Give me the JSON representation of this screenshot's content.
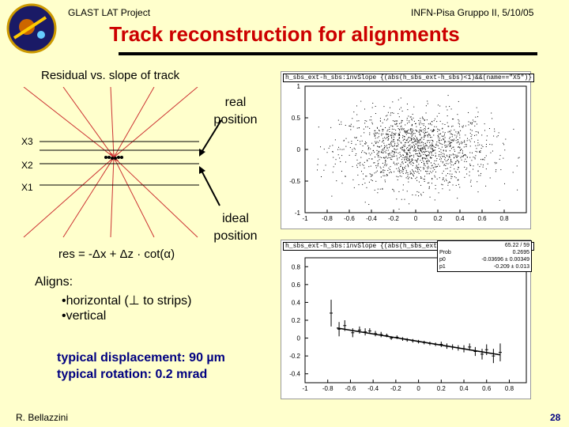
{
  "header": {
    "project": "GLAST LAT Project",
    "meeting": "INFN-Pisa Gruppo II, 5/10/05"
  },
  "title": "Track reconstruction for alignments",
  "diagram": {
    "caption": "Residual vs. slope of track",
    "real_label": "real\nposition",
    "ideal_label": "ideal\nposition",
    "layers": [
      "X3",
      "X2",
      "X1"
    ],
    "formula": "res = -Δx + Δz · cot(α)"
  },
  "aligns": {
    "heading": "Aligns:",
    "items": [
      "•horizontal (⊥ to strips)",
      "•vertical"
    ]
  },
  "results": {
    "displacement": "typical displacement: 90 µm",
    "rotation": "typical rotation: 0.2 mrad"
  },
  "footer": {
    "author": "R. Bellazzini",
    "page": "28"
  },
  "plots": {
    "top_title": "h_sbs_ext-h_sbs:invSlope {(abs(h_sbs_ext-h_sbs)<1)&&(name==\"X5\")}",
    "bottom_title": "h_sbs_ext-h_sbs:invSlope {(abs(h_sbs_ext-h_sbs)<1)&&(name==\"X5\")}",
    "fit_box": [
      {
        "k": "",
        "v": "65.22 / 59"
      },
      {
        "k": "Prob",
        "v": "0.2695"
      },
      {
        "k": "p0",
        "v": "-0.03696 ± 0.00349"
      },
      {
        "k": "p1",
        "v": "-0.209 ± 0.013"
      }
    ]
  },
  "chart_data": [
    {
      "type": "scatter",
      "xlim": [
        -1,
        1
      ],
      "ylim": [
        -1,
        1
      ],
      "xticks": [
        "-1",
        "-0.8",
        "-0.6",
        "-0.4",
        "-0.2",
        "0",
        "0.2",
        "0.4",
        "0.6",
        "0.8"
      ],
      "yticks": [
        "1",
        "0.5",
        "0",
        "-0.5",
        "-1"
      ],
      "n_points": 1500,
      "spread_x": 0.28,
      "spread_y": 0.3
    },
    {
      "type": "scatter",
      "xlim": [
        -1,
        0.95
      ],
      "ylim": [
        -0.5,
        0.9
      ],
      "xticks": [
        "-1",
        "-0.8",
        "-0.6",
        "-0.4",
        "-0.2",
        "0",
        "0.2",
        "0.4",
        "0.6",
        "0.8"
      ],
      "yticks": [
        "0.8",
        "0.6",
        "0.4",
        "0.2",
        "0",
        "-0.2",
        "-0.4"
      ],
      "line": {
        "p0": -0.03696,
        "p1": -0.209
      },
      "points": [
        {
          "x": -0.77,
          "y": 0.28,
          "e": 0.15
        },
        {
          "x": -0.7,
          "y": 0.1,
          "e": 0.08
        },
        {
          "x": -0.65,
          "y": 0.14,
          "e": 0.06
        },
        {
          "x": -0.58,
          "y": 0.06,
          "e": 0.05
        },
        {
          "x": -0.52,
          "y": 0.09,
          "e": 0.04
        },
        {
          "x": -0.47,
          "y": 0.07,
          "e": 0.04
        },
        {
          "x": -0.43,
          "y": 0.08,
          "e": 0.03
        },
        {
          "x": -0.38,
          "y": 0.05,
          "e": 0.03
        },
        {
          "x": -0.33,
          "y": 0.04,
          "e": 0.03
        },
        {
          "x": -0.28,
          "y": 0.03,
          "e": 0.02
        },
        {
          "x": -0.24,
          "y": 0.0,
          "e": 0.02
        },
        {
          "x": -0.19,
          "y": 0.01,
          "e": 0.02
        },
        {
          "x": -0.14,
          "y": -0.01,
          "e": 0.02
        },
        {
          "x": -0.1,
          "y": -0.02,
          "e": 0.02
        },
        {
          "x": -0.05,
          "y": -0.03,
          "e": 0.02
        },
        {
          "x": 0.0,
          "y": -0.04,
          "e": 0.02
        },
        {
          "x": 0.05,
          "y": -0.05,
          "e": 0.02
        },
        {
          "x": 0.1,
          "y": -0.06,
          "e": 0.02
        },
        {
          "x": 0.15,
          "y": -0.07,
          "e": 0.02
        },
        {
          "x": 0.2,
          "y": -0.07,
          "e": 0.03
        },
        {
          "x": 0.25,
          "y": -0.09,
          "e": 0.03
        },
        {
          "x": 0.3,
          "y": -0.1,
          "e": 0.03
        },
        {
          "x": 0.35,
          "y": -0.11,
          "e": 0.03
        },
        {
          "x": 0.4,
          "y": -0.12,
          "e": 0.04
        },
        {
          "x": 0.45,
          "y": -0.1,
          "e": 0.04
        },
        {
          "x": 0.5,
          "y": -0.15,
          "e": 0.05
        },
        {
          "x": 0.56,
          "y": -0.18,
          "e": 0.06
        },
        {
          "x": 0.6,
          "y": -0.13,
          "e": 0.06
        },
        {
          "x": 0.66,
          "y": -0.2,
          "e": 0.08
        },
        {
          "x": 0.72,
          "y": -0.16,
          "e": 0.1
        }
      ]
    }
  ]
}
